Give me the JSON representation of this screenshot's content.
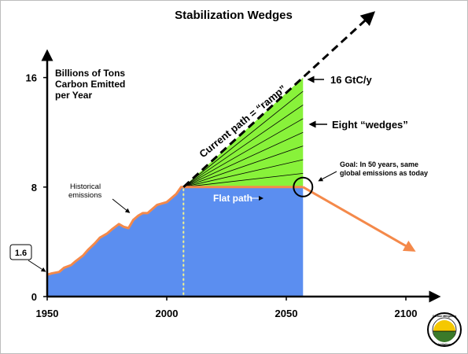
{
  "chart_data": {
    "type": "area",
    "title": "Stabilization Wedges",
    "ylabel_lines": [
      "Billions of Tons",
      "Carbon Emitted",
      "per Year"
    ],
    "xlabel": "",
    "x_ticks": [
      1950,
      2000,
      2050,
      2100
    ],
    "y_ticks": [
      0,
      8,
      16
    ],
    "xlim": [
      1950,
      2110
    ],
    "ylim": [
      0,
      16.5
    ],
    "series": [
      {
        "name": "Historical emissions",
        "x": [
          1950,
          1952,
          1955,
          1957,
          1960,
          1962,
          1965,
          1967,
          1970,
          1972,
          1975,
          1977,
          1980,
          1982,
          1984,
          1986,
          1988,
          1990,
          1992,
          1994,
          1996,
          1998,
          2000,
          2002,
          2004,
          2006
        ],
        "y": [
          1.6,
          1.7,
          1.8,
          2.1,
          2.3,
          2.6,
          3.0,
          3.4,
          3.9,
          4.3,
          4.6,
          4.9,
          5.3,
          5.1,
          5.0,
          5.6,
          5.9,
          6.1,
          6.1,
          6.4,
          6.7,
          6.8,
          6.9,
          7.2,
          7.5,
          8.0
        ]
      },
      {
        "name": "Current path = “ramp”",
        "x": [
          2007,
          2057,
          2085
        ],
        "y": [
          8,
          16,
          20.5
        ]
      },
      {
        "name": "Flat path",
        "x": [
          2007,
          2057
        ],
        "y": [
          8,
          8
        ]
      },
      {
        "name": "Goal",
        "x": [
          2057,
          2102
        ],
        "y": [
          8,
          3.5
        ]
      }
    ],
    "wedges": {
      "count": 8,
      "x_start": 2007,
      "x_end": 2057,
      "y_low": 8,
      "y_high": 16
    },
    "vertical_marker_x": 2007,
    "annotations": {
      "historical": [
        "Historical",
        "emissions"
      ],
      "start_value": "1.6",
      "ramp": "Current path = “ramp”",
      "end_value": "16 GtC/y",
      "wedges": "Eight “wedges”",
      "flat": "Flat path",
      "goal": [
        "Goal: In 50 years, same",
        "global emissions as today"
      ]
    },
    "colors": {
      "historical_fill": "#5b8ef0",
      "wedge_fill": "#88f23a",
      "trace": "#f4894a",
      "marker": "#f3f38a",
      "text": "#000000",
      "flat_text": "#ffffff"
    },
    "logo": {
      "name": "carbon-mitigation-initiative-logo",
      "text": [
        "Carbon Mitigation",
        "Initiative"
      ]
    }
  }
}
